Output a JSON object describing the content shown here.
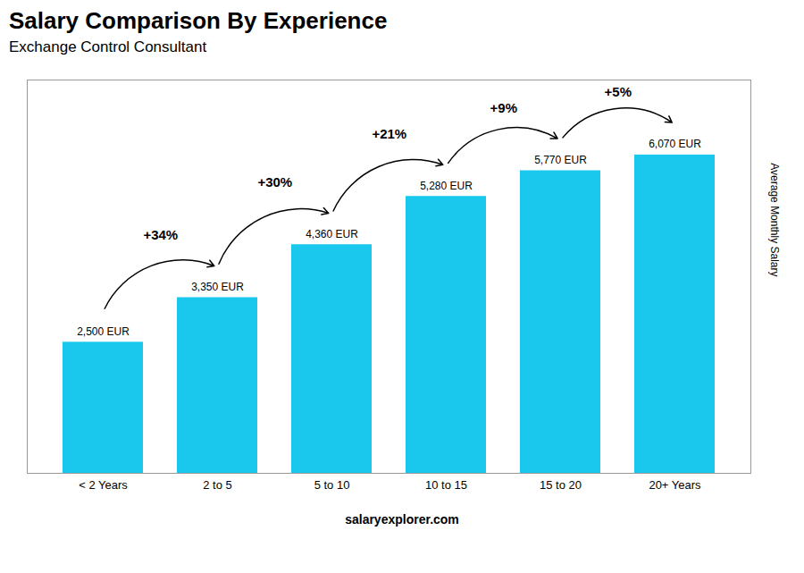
{
  "chart_data": {
    "type": "bar",
    "title": "Salary Comparison By Experience",
    "subtitle": "Exchange Control Consultant",
    "y_label": "Average Monthly Salary",
    "caption": "salaryexplorer.com",
    "categories": [
      "< 2 Years",
      "2 to 5",
      "5 to 10",
      "10 to 15",
      "15 to 20",
      "20+ Years"
    ],
    "values": [
      2500,
      3350,
      4360,
      5280,
      5770,
      6070
    ],
    "value_labels": [
      "2,500 EUR",
      "3,350 EUR",
      "4,360 EUR",
      "5,280 EUR",
      "5,770 EUR",
      "6,070 EUR"
    ],
    "data_labels": true,
    "annotations": [
      "+34%",
      "+30%",
      "+21%",
      "+9%",
      "+5%"
    ],
    "color": "#1ac8ed",
    "ylim": [
      0,
      7500
    ],
    "tick_labels": "x",
    "grid": false
  }
}
